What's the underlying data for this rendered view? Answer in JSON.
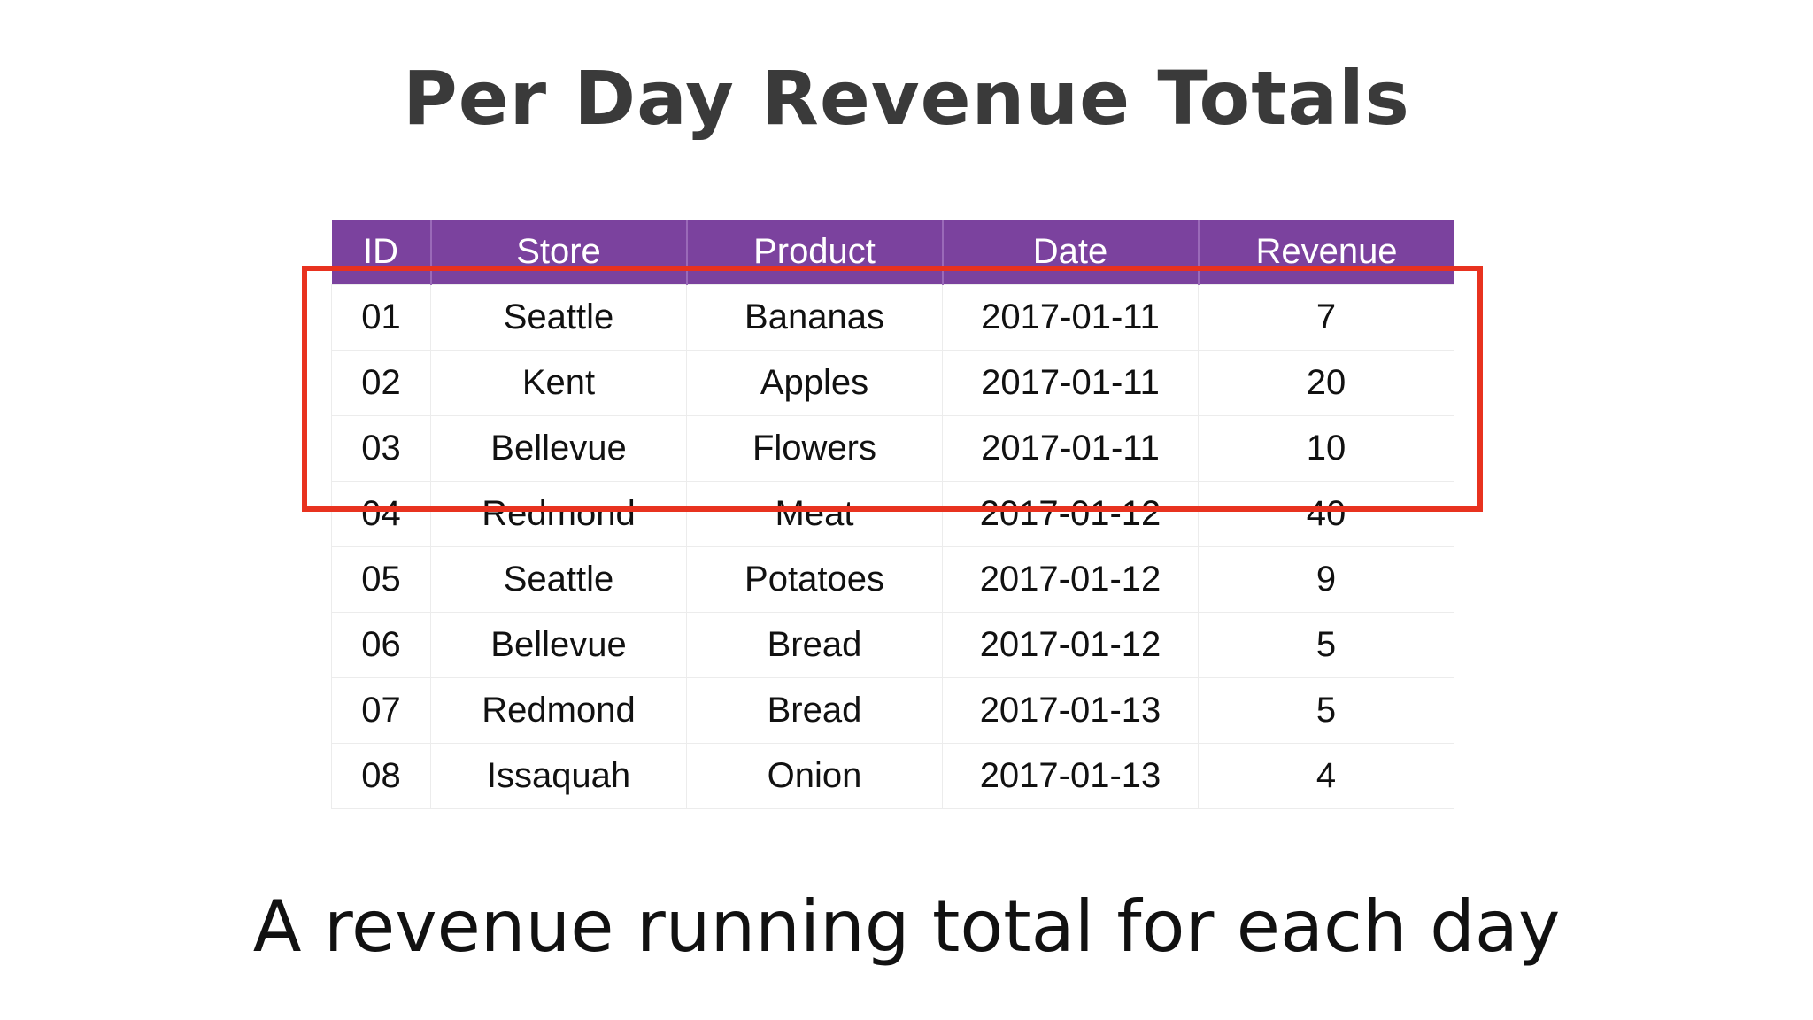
{
  "title": "Per Day Revenue Totals",
  "table": {
    "headers": [
      "ID",
      "Store",
      "Product",
      "Date",
      "Revenue"
    ],
    "rows": [
      [
        "01",
        "Seattle",
        "Bananas",
        "2017-01-11",
        "7"
      ],
      [
        "02",
        "Kent",
        "Apples",
        "2017-01-11",
        "20"
      ],
      [
        "03",
        "Bellevue",
        "Flowers",
        "2017-01-11",
        "10"
      ],
      [
        "04",
        "Redmond",
        "Meat",
        "2017-01-12",
        "40"
      ],
      [
        "05",
        "Seattle",
        "Potatoes",
        "2017-01-12",
        "9"
      ],
      [
        "06",
        "Bellevue",
        "Bread",
        "2017-01-12",
        "5"
      ],
      [
        "07",
        "Redmond",
        "Bread",
        "2017-01-13",
        "5"
      ],
      [
        "08",
        "Issaquah",
        "Onion",
        "2017-01-13",
        "4"
      ]
    ]
  },
  "caption": "A revenue running total for each day",
  "colors": {
    "header_bg": "#7b429e",
    "highlight": "#e8321f",
    "title_text": "#3a3a3a"
  }
}
